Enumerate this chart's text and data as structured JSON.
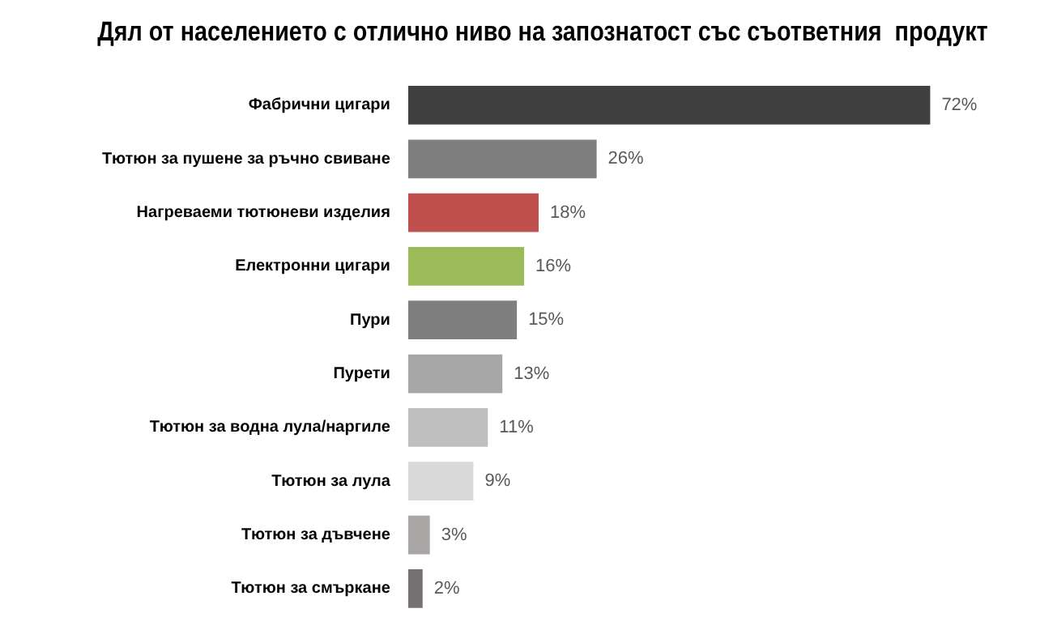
{
  "chart_data": {
    "type": "bar",
    "orientation": "horizontal",
    "title": "Дял от населението с отлично ниво на запознатост със съответния  продукт",
    "categories": [
      "Фабрични цигари",
      "Тютюн за пушене за ръчно свиване",
      "Нагреваеми тютюневи изделия",
      "Електронни цигари",
      "Пури",
      "Пурети",
      "Тютюн за водна лула/наргиле",
      "Тютюн за лула",
      "Тютюн за дъвчене",
      "Тютюн за смъркане"
    ],
    "values": [
      72,
      26,
      18,
      16,
      15,
      13,
      11,
      9,
      3,
      2
    ],
    "colors": [
      "#404040",
      "#7f7f7f",
      "#c0504d",
      "#9bbb59",
      "#7f7f7f",
      "#a6a6a6",
      "#bfbfbf",
      "#d9d9d9",
      "#aaa6a6",
      "#767171"
    ],
    "value_labels": [
      "72%",
      "26%",
      "18%",
      "16%",
      "15%",
      "13%",
      "11%",
      "9%",
      "3%",
      "2%"
    ],
    "tick_labels": "y"
  }
}
